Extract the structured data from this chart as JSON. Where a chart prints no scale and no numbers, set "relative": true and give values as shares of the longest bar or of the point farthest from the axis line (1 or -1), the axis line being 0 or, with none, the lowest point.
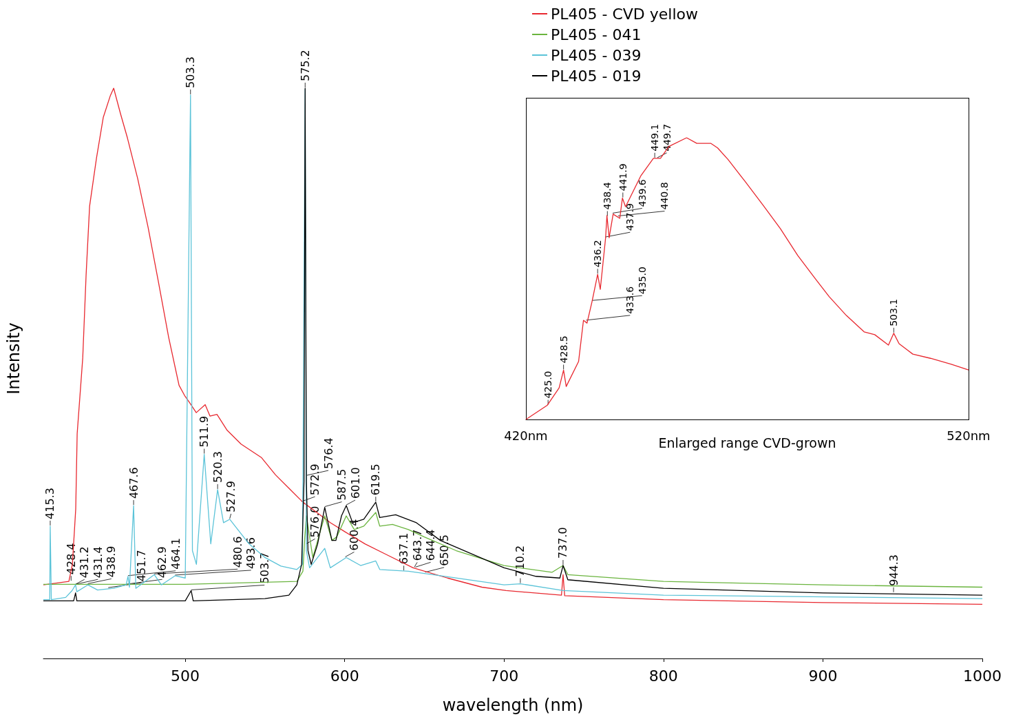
{
  "chart_data": [
    {
      "type": "line",
      "relative": true,
      "xlabel": "wavelength (nm)",
      "ylabel": "Intensity",
      "xlim": [
        411,
        1000
      ],
      "xticks": [
        500,
        600,
        700,
        800,
        900,
        1000
      ],
      "legend": "top right",
      "marker": "none",
      "line_style": "solid",
      "grid": false,
      "series": [
        {
          "name": "PL405 - CVD yellow",
          "color": "#e8282f",
          "x": [
            411,
            427,
            429.2,
            431.3,
            432.2,
            435.7,
            437.8,
            440,
            444.3,
            448.6,
            452.9,
            455.1,
            459.4,
            463.7,
            470.2,
            476.7,
            483.2,
            489.6,
            496.1,
            499.6,
            502.6,
            506.9,
            512.5,
            515.5,
            519.9,
            526.3,
            535,
            547.9,
            556.6,
            565.2,
            573.8,
            582.5,
            591.1,
            599.7,
            612.7,
            625.6,
            642.9,
            664.5,
            686.1,
            701.2,
            736,
            737,
            738,
            800,
            900,
            1000
          ],
          "values": [
            0.129,
            0.135,
            0.165,
            0.262,
            0.394,
            0.527,
            0.672,
            0.793,
            0.877,
            0.949,
            0.986,
            1.0,
            0.955,
            0.913,
            0.841,
            0.756,
            0.66,
            0.563,
            0.479,
            0.461,
            0.449,
            0.431,
            0.445,
            0.425,
            0.428,
            0.4,
            0.376,
            0.352,
            0.322,
            0.298,
            0.274,
            0.256,
            0.238,
            0.223,
            0.201,
            0.183,
            0.159,
            0.141,
            0.125,
            0.119,
            0.111,
            0.147,
            0.11,
            0.103,
            0.098,
            0.095
          ]
        },
        {
          "name": "PL405 - 041",
          "color": "#6ab43e",
          "x": [
            411,
            500,
            570,
            573.8,
            575,
            576,
            580,
            587.5,
            592,
            595,
            601,
            606,
            612,
            619.5,
            622,
            630,
            640,
            650,
            670,
            700,
            730,
            737,
            740,
            800,
            900,
            1000
          ],
          "values": [
            0.13,
            0.13,
            0.135,
            0.153,
            0.213,
            0.25,
            0.177,
            0.25,
            0.207,
            0.213,
            0.25,
            0.226,
            0.232,
            0.256,
            0.232,
            0.235,
            0.226,
            0.213,
            0.189,
            0.163,
            0.151,
            0.163,
            0.147,
            0.135,
            0.129,
            0.125
          ]
        },
        {
          "name": "PL405 - 039",
          "color": "#5bc3d8",
          "x": [
            411,
            415,
            415.3,
            416,
            425,
            429,
            431.2,
            432,
            438.9,
            445,
            455,
            462.9,
            464.1,
            465,
            467.6,
            469,
            480.6,
            485,
            493.6,
            500,
            503.3,
            504.5,
            507,
            511.9,
            516,
            520.3,
            524,
            527.9,
            540,
            550,
            560,
            570,
            573.5,
            575.2,
            576,
            578,
            587.5,
            591,
            601,
            610,
            619.5,
            622,
            640,
            660,
            700,
            710.2,
            737,
            800,
            1000
          ],
          "values": [
            0.103,
            0.103,
            0.232,
            0.103,
            0.107,
            0.119,
            0.129,
            0.117,
            0.129,
            0.12,
            0.123,
            0.129,
            0.144,
            0.125,
            0.268,
            0.123,
            0.147,
            0.129,
            0.145,
            0.141,
            0.988,
            0.189,
            0.165,
            0.358,
            0.201,
            0.296,
            0.238,
            0.244,
            0.201,
            0.177,
            0.162,
            0.156,
            0.165,
            0.998,
            0.189,
            0.159,
            0.193,
            0.159,
            0.177,
            0.163,
            0.171,
            0.156,
            0.153,
            0.145,
            0.129,
            0.131,
            0.119,
            0.111,
            0.105
          ]
        },
        {
          "name": "PL405 - 019",
          "color": "#000000",
          "x": [
            411,
            430,
            431.2,
            432,
            500,
            503.7,
            505,
            550,
            565,
            570,
            573,
            574.5,
            575.2,
            576,
            577,
            579,
            583,
            587.5,
            592,
            594.5,
            598,
            601,
            605,
            612,
            619.5,
            622,
            632,
            645,
            660,
            700,
            720,
            735,
            737,
            740,
            800,
            900,
            1000
          ],
          "values": [
            0.101,
            0.101,
            0.115,
            0.101,
            0.101,
            0.119,
            0.101,
            0.105,
            0.111,
            0.129,
            0.165,
            0.31,
            1.0,
            0.31,
            0.189,
            0.165,
            0.2,
            0.265,
            0.207,
            0.207,
            0.25,
            0.268,
            0.238,
            0.244,
            0.274,
            0.247,
            0.252,
            0.238,
            0.207,
            0.159,
            0.144,
            0.141,
            0.163,
            0.138,
            0.123,
            0.115,
            0.111
          ]
        }
      ],
      "annotations": [
        {
          "text": "415.3",
          "x": 415.3,
          "y": 0.232
        },
        {
          "text": "428.4",
          "x": 428.4,
          "y": 0.135
        },
        {
          "text": "431.2",
          "x": 431.2,
          "y": 0.129
        },
        {
          "text": "431.4",
          "x": 431.4,
          "y": 0.129
        },
        {
          "text": "438.9",
          "x": 438.9,
          "y": 0.13
        },
        {
          "text": "451.7",
          "x": 451.7,
          "y": 0.123
        },
        {
          "text": "462.9",
          "x": 462.9,
          "y": 0.129
        },
        {
          "text": "464.1",
          "x": 464.1,
          "y": 0.144
        },
        {
          "text": "467.6",
          "x": 467.6,
          "y": 0.268
        },
        {
          "text": "480.6",
          "x": 480.6,
          "y": 0.147
        },
        {
          "text": "493.6",
          "x": 493.6,
          "y": 0.145
        },
        {
          "text": "503.3",
          "x": 503.3,
          "y": 0.988
        },
        {
          "text": "503.7",
          "x": 503.7,
          "y": 0.119
        },
        {
          "text": "511.9",
          "x": 511.9,
          "y": 0.358
        },
        {
          "text": "520.3",
          "x": 520.3,
          "y": 0.296
        },
        {
          "text": "527.9",
          "x": 527.9,
          "y": 0.244
        },
        {
          "text": "572.9",
          "x": 572.9,
          "y": 0.274
        },
        {
          "text": "575.2",
          "x": 575.2,
          "y": 1.0
        },
        {
          "text": "576.0",
          "x": 576.0,
          "y": 0.2
        },
        {
          "text": "576.4",
          "x": 576.4,
          "y": 0.32
        },
        {
          "text": "587.5",
          "x": 587.5,
          "y": 0.265
        },
        {
          "text": "600.4",
          "x": 600.4,
          "y": 0.177
        },
        {
          "text": "601.0",
          "x": 601.0,
          "y": 0.268
        },
        {
          "text": "619.5",
          "x": 619.5,
          "y": 0.274
        },
        {
          "text": "637.1",
          "x": 637.1,
          "y": 0.153
        },
        {
          "text": "643.7",
          "x": 643.7,
          "y": 0.159
        },
        {
          "text": "644.4",
          "x": 644.4,
          "y": 0.159
        },
        {
          "text": "650.5",
          "x": 650.5,
          "y": 0.15
        },
        {
          "text": "710.2",
          "x": 710.2,
          "y": 0.131
        },
        {
          "text": "737.0",
          "x": 737.0,
          "y": 0.163
        },
        {
          "text": "944.3",
          "x": 944.3,
          "y": 0.115
        }
      ]
    },
    {
      "type": "line",
      "relative": true,
      "xlim": [
        420,
        520
      ],
      "xticks": [
        {
          "value": 420,
          "label": "420nm"
        },
        {
          "value": 520,
          "label": "520nm"
        }
      ],
      "marker": "none",
      "line_style": "solid",
      "grid": false,
      "legend": false,
      "series": [
        {
          "color": "#e8282f",
          "x": [
            420,
            424.8,
            427.5,
            428.5,
            429.1,
            431.9,
            433.0,
            433.8,
            434.9,
            436.2,
            436.8,
            438.0,
            438.3,
            438.8,
            439.7,
            441.2,
            441.8,
            442.5,
            446.0,
            448.8,
            450.4,
            452.3,
            456.3,
            458.6,
            461.8,
            463.3,
            465.7,
            469.6,
            473.6,
            477.5,
            481.4,
            485.4,
            488.5,
            492.4,
            496.4,
            498.8,
            501.9,
            503.1,
            504.3,
            507.4,
            511.4,
            516.1,
            520
          ],
          "values": [
            0,
            0.05,
            0.112,
            0.175,
            0.117,
            0.206,
            0.352,
            0.342,
            0.416,
            0.515,
            0.462,
            0.645,
            0.724,
            0.645,
            0.729,
            0.714,
            0.786,
            0.755,
            0.866,
            0.927,
            0.927,
            0.969,
            1.0,
            0.98,
            0.98,
            0.964,
            0.922,
            0.843,
            0.76,
            0.677,
            0.582,
            0.499,
            0.436,
            0.369,
            0.311,
            0.301,
            0.264,
            0.306,
            0.269,
            0.232,
            0.217,
            0.196,
            0.176
          ]
        }
      ],
      "annotations": [
        {
          "text": "425.0",
          "x": 425.0,
          "y": 0.05
        },
        {
          "text": "428.5",
          "x": 428.5,
          "y": 0.175
        },
        {
          "text": "433.6",
          "x": 433.6,
          "y": 0.35
        },
        {
          "text": "435.0",
          "x": 435.0,
          "y": 0.42
        },
        {
          "text": "436.2",
          "x": 436.2,
          "y": 0.515
        },
        {
          "text": "437.9",
          "x": 437.9,
          "y": 0.645
        },
        {
          "text": "438.4",
          "x": 438.4,
          "y": 0.72
        },
        {
          "text": "439.6",
          "x": 439.6,
          "y": 0.73
        },
        {
          "text": "440.8",
          "x": 440.8,
          "y": 0.72
        },
        {
          "text": "441.9",
          "x": 441.9,
          "y": 0.786
        },
        {
          "text": "449.1",
          "x": 449.1,
          "y": 0.927
        },
        {
          "text": "449.7",
          "x": 449.7,
          "y": 0.927
        },
        {
          "text": "503.1",
          "x": 503.1,
          "y": 0.306
        },
        "Enlarged range CVD-grown"
      ]
    }
  ]
}
